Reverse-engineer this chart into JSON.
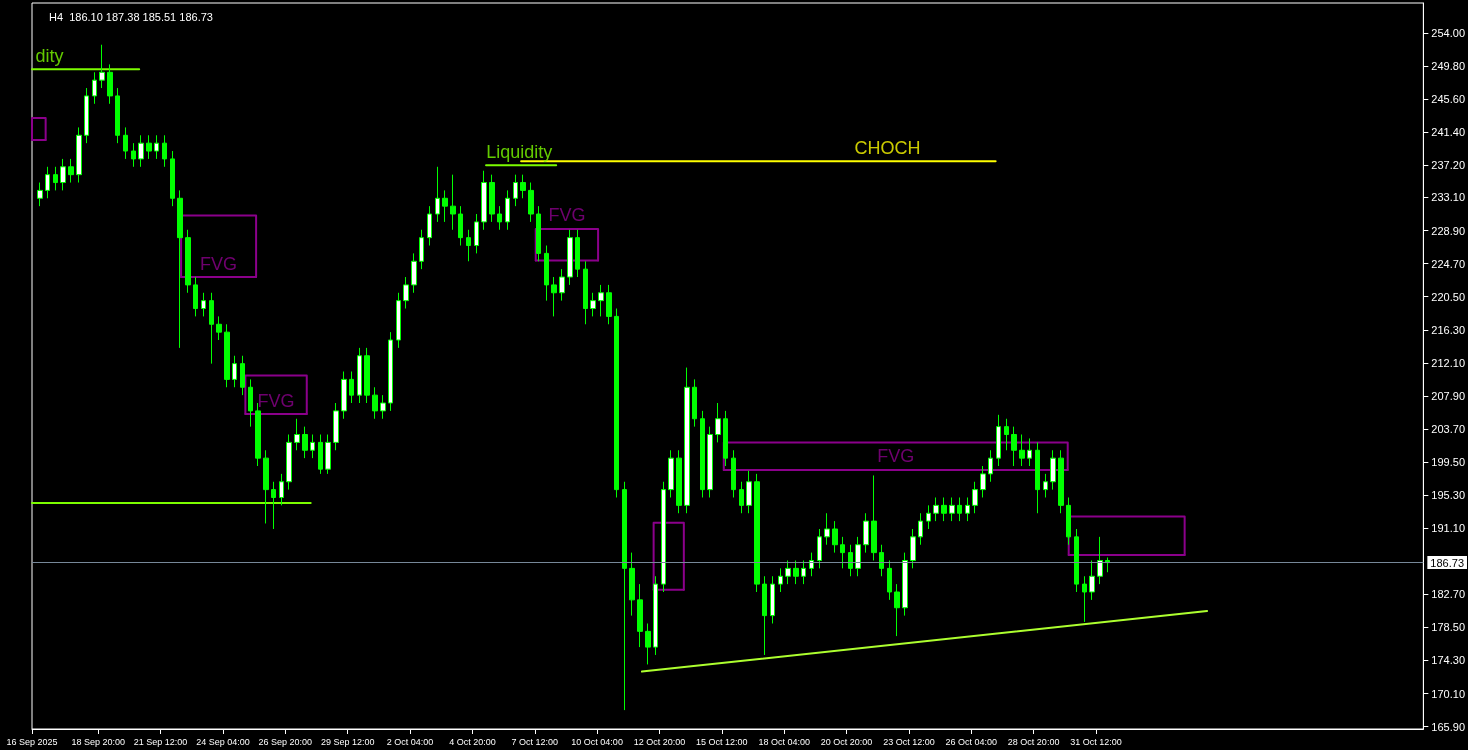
{
  "chart_data": {
    "type": "candlestick",
    "title": "H4  186.10 187.38 185.51 186.73",
    "color": "#00ff00",
    "x": [
      "2025-09-16T08:00",
      "2025-09-16T16:00",
      "2025-09-17T00:00",
      "2025-09-17T08:00",
      "2025-09-17T16:00",
      "2025-09-18T00:00",
      "2025-09-18T08:00",
      "2025-09-18T16:00",
      "2025-09-19T00:00",
      "2025-09-19T08:00",
      "2025-09-19T16:00",
      "2025-09-20T00:00",
      "2025-09-20T08:00",
      "2025-09-20T16:00",
      "2025-09-21T00:00",
      "2025-09-21T08:00",
      "2025-09-21T16:00",
      "2025-09-22T00:00",
      "2025-09-22T08:00",
      "2025-09-22T16:00",
      "2025-09-23T00:00",
      "2025-09-23T08:00",
      "2025-09-23T16:00",
      "2025-09-24T00:00",
      "2025-09-24T08:00",
      "2025-09-24T16:00",
      "2025-09-25T00:00",
      "2025-09-25T08:00",
      "2025-09-25T16:00",
      "2025-09-26T00:00",
      "2025-09-26T08:00",
      "2025-09-26T16:00",
      "2025-09-27T00:00",
      "2025-09-27T08:00",
      "2025-09-27T16:00",
      "2025-09-28T00:00",
      "2025-09-28T08:00",
      "2025-09-28T16:00",
      "2025-09-29T00:00",
      "2025-09-29T08:00",
      "2025-09-29T16:00",
      "2025-09-30T00:00",
      "2025-09-30T08:00",
      "2025-09-30T16:00",
      "2025-10-01T00:00",
      "2025-10-01T08:00",
      "2025-10-01T16:00",
      "2025-10-02T00:00",
      "2025-10-02T08:00",
      "2025-10-02T16:00",
      "2025-10-03T00:00",
      "2025-10-03T08:00",
      "2025-10-03T16:00",
      "2025-10-04T00:00",
      "2025-10-04T08:00",
      "2025-10-04T16:00",
      "2025-10-05T00:00",
      "2025-10-05T08:00",
      "2025-10-05T16:00",
      "2025-10-06T00:00",
      "2025-10-06T08:00",
      "2025-10-06T16:00",
      "2025-10-07T00:00",
      "2025-10-07T08:00",
      "2025-10-07T16:00",
      "2025-10-08T00:00",
      "2025-10-08T08:00",
      "2025-10-08T16:00",
      "2025-10-09T00:00",
      "2025-10-09T08:00",
      "2025-10-09T16:00",
      "2025-10-10T00:00",
      "2025-10-10T08:00",
      "2025-10-10T16:00",
      "2025-10-11T00:00",
      "2025-10-11T08:00",
      "2025-10-11T16:00",
      "2025-10-12T00:00",
      "2025-10-12T08:00",
      "2025-10-12T16:00",
      "2025-10-13T00:00",
      "2025-10-13T08:00",
      "2025-10-13T16:00",
      "2025-10-14T00:00",
      "2025-10-14T08:00",
      "2025-10-14T16:00",
      "2025-10-15T00:00",
      "2025-10-15T08:00",
      "2025-10-15T16:00",
      "2025-10-16T00:00",
      "2025-10-16T08:00",
      "2025-10-16T16:00",
      "2025-10-17T00:00",
      "2025-10-17T08:00",
      "2025-10-17T16:00",
      "2025-10-18T00:00",
      "2025-10-18T08:00",
      "2025-10-18T16:00",
      "2025-10-19T00:00",
      "2025-10-19T08:00",
      "2025-10-19T16:00",
      "2025-10-20T00:00",
      "2025-10-20T08:00",
      "2025-10-20T16:00",
      "2025-10-21T00:00",
      "2025-10-21T08:00",
      "2025-10-21T16:00",
      "2025-10-22T00:00",
      "2025-10-22T08:00",
      "2025-10-22T16:00",
      "2025-10-23T00:00",
      "2025-10-23T08:00",
      "2025-10-23T16:00",
      "2025-10-24T00:00",
      "2025-10-24T08:00",
      "2025-10-24T16:00",
      "2025-10-25T00:00",
      "2025-10-25T08:00",
      "2025-10-25T16:00",
      "2025-10-26T00:00",
      "2025-10-26T08:00",
      "2025-10-26T16:00",
      "2025-10-27T00:00",
      "2025-10-27T08:00",
      "2025-10-27T16:00",
      "2025-10-28T00:00",
      "2025-10-28T08:00",
      "2025-10-28T16:00",
      "2025-10-29T00:00",
      "2025-10-29T08:00",
      "2025-10-29T16:00",
      "2025-10-30T00:00",
      "2025-10-30T08:00",
      "2025-10-30T16:00",
      "2025-10-31T00:00",
      "2025-10-31T08:00",
      "2025-10-31T16:00",
      "2025-11-01T00:00"
    ],
    "ohlc": [
      [
        233,
        235,
        232,
        234
      ],
      [
        234,
        237,
        233,
        236
      ],
      [
        236,
        237,
        234,
        235
      ],
      [
        235,
        238,
        234,
        237
      ],
      [
        237,
        238,
        235,
        236
      ],
      [
        236,
        242,
        235,
        241
      ],
      [
        241,
        247,
        240,
        246
      ],
      [
        246,
        249,
        245,
        248
      ],
      [
        248,
        252.5,
        247,
        249
      ],
      [
        249,
        250,
        245,
        246
      ],
      [
        246,
        247,
        240,
        241
      ],
      [
        241,
        242,
        238,
        239
      ],
      [
        239,
        240,
        237,
        238
      ],
      [
        238,
        241,
        237,
        240
      ],
      [
        240,
        241,
        238,
        239
      ],
      [
        239,
        241,
        238,
        240
      ],
      [
        240,
        241,
        237,
        238
      ],
      [
        238,
        239,
        232,
        233
      ],
      [
        233,
        234,
        214,
        228
      ],
      [
        228,
        229,
        221,
        222
      ],
      [
        222,
        223,
        218,
        219
      ],
      [
        219,
        221,
        218,
        220
      ],
      [
        220,
        221,
        212,
        217
      ],
      [
        217,
        218,
        215,
        216
      ],
      [
        216,
        217,
        209,
        210
      ],
      [
        210,
        213,
        209,
        212
      ],
      [
        212,
        213,
        208,
        209
      ],
      [
        209,
        210,
        204,
        206
      ],
      [
        206,
        207,
        199,
        200
      ],
      [
        200,
        201,
        191.7,
        196
      ],
      [
        196,
        197,
        191,
        195
      ],
      [
        195,
        198,
        194,
        197
      ],
      [
        197,
        203,
        196,
        202
      ],
      [
        202,
        205,
        201,
        203
      ],
      [
        203,
        204,
        200,
        201
      ],
      [
        201,
        203,
        200,
        202
      ],
      [
        202,
        203,
        198,
        198.6
      ],
      [
        198.6,
        203,
        198,
        202
      ],
      [
        202,
        207,
        201,
        206
      ],
      [
        206,
        211,
        205,
        210
      ],
      [
        210,
        211,
        207,
        208
      ],
      [
        208,
        214,
        207,
        213
      ],
      [
        213,
        214,
        207,
        208
      ],
      [
        208,
        209,
        205,
        206
      ],
      [
        206,
        208,
        205,
        207
      ],
      [
        207,
        216,
        206,
        215
      ],
      [
        215,
        221,
        214,
        220
      ],
      [
        220,
        223,
        219,
        222
      ],
      [
        222,
        226,
        221,
        225
      ],
      [
        225,
        229,
        224,
        228
      ],
      [
        228,
        232,
        227,
        231
      ],
      [
        231,
        237,
        230,
        233
      ],
      [
        233,
        234,
        230,
        232
      ],
      [
        232,
        236,
        229,
        231
      ],
      [
        231,
        232,
        227,
        228
      ],
      [
        228,
        229,
        225,
        227
      ],
      [
        227,
        231,
        226,
        230
      ],
      [
        230,
        236.5,
        229,
        235
      ],
      [
        235,
        236,
        230,
        231
      ],
      [
        231,
        232,
        229,
        230
      ],
      [
        230,
        234,
        229,
        233
      ],
      [
        233,
        236,
        232,
        235
      ],
      [
        235,
        236,
        233,
        234
      ],
      [
        234,
        235,
        230,
        231
      ],
      [
        231,
        232,
        225,
        226
      ],
      [
        226,
        227,
        220,
        222
      ],
      [
        222,
        223,
        218,
        221
      ],
      [
        221,
        224,
        220,
        223
      ],
      [
        223,
        229,
        222,
        228
      ],
      [
        228,
        229,
        223,
        224
      ],
      [
        224,
        225,
        217,
        219
      ],
      [
        219,
        221,
        218,
        220
      ],
      [
        220,
        222,
        218,
        221
      ],
      [
        221,
        222,
        217,
        218
      ],
      [
        218,
        219,
        195,
        196
      ],
      [
        196,
        197,
        168,
        186
      ],
      [
        186,
        188,
        180,
        182
      ],
      [
        182,
        184,
        176,
        178
      ],
      [
        178,
        179,
        173.8,
        176
      ],
      [
        176,
        185,
        175,
        184
      ],
      [
        184,
        197,
        183,
        196
      ],
      [
        196,
        201,
        195,
        200
      ],
      [
        200,
        201,
        193,
        194
      ],
      [
        194,
        211.5,
        193,
        209
      ],
      [
        209,
        210,
        204,
        205
      ],
      [
        205,
        206,
        195,
        196
      ],
      [
        196,
        204,
        195,
        203
      ],
      [
        203,
        207,
        202,
        205
      ],
      [
        205,
        206,
        199,
        200
      ],
      [
        200,
        201,
        195,
        196
      ],
      [
        196,
        197,
        193,
        194
      ],
      [
        194,
        198.4,
        193,
        197
      ],
      [
        197,
        198,
        183,
        184
      ],
      [
        184,
        185,
        175,
        180
      ],
      [
        180,
        185,
        179,
        184
      ],
      [
        184,
        186,
        183,
        185
      ],
      [
        185,
        187,
        184,
        186
      ],
      [
        186,
        187,
        184,
        185
      ],
      [
        185,
        187,
        184,
        186
      ],
      [
        186,
        188,
        185,
        187
      ],
      [
        187,
        191,
        186,
        190
      ],
      [
        190,
        193,
        189,
        191
      ],
      [
        191,
        192,
        188,
        189
      ],
      [
        189,
        190,
        186,
        188
      ],
      [
        188,
        189,
        185,
        186
      ],
      [
        186,
        190,
        185,
        189
      ],
      [
        189,
        193,
        188,
        192
      ],
      [
        192,
        197.8,
        187,
        188
      ],
      [
        188,
        189,
        185,
        186
      ],
      [
        186,
        187,
        182,
        183
      ],
      [
        183,
        184,
        177.4,
        181
      ],
      [
        181,
        188,
        180,
        187
      ],
      [
        187,
        191,
        186,
        190
      ],
      [
        190,
        193,
        189,
        192
      ],
      [
        192,
        194,
        191,
        193
      ],
      [
        193,
        195,
        192,
        194
      ],
      [
        194,
        195,
        192,
        193
      ],
      [
        193,
        195,
        192,
        194
      ],
      [
        194,
        195,
        192,
        193
      ],
      [
        193,
        195,
        192,
        194
      ],
      [
        194,
        197,
        193,
        196
      ],
      [
        196,
        199,
        195,
        198
      ],
      [
        198,
        201,
        197,
        200
      ],
      [
        200,
        205.5,
        199,
        204
      ],
      [
        204,
        205,
        201,
        203
      ],
      [
        203,
        204,
        199,
        201
      ],
      [
        201,
        203,
        199,
        200
      ],
      [
        200,
        202.5,
        199,
        201
      ],
      [
        201,
        202,
        193,
        196
      ],
      [
        196,
        198,
        195,
        197
      ],
      [
        197,
        201,
        196,
        200
      ],
      [
        200,
        201,
        193,
        194
      ],
      [
        194,
        195,
        189,
        190
      ],
      [
        190,
        191,
        183,
        184
      ],
      [
        184,
        185,
        179.2,
        183
      ],
      [
        183,
        187,
        182,
        185
      ],
      [
        185,
        190,
        184,
        187
      ],
      [
        187,
        187.38,
        185.51,
        186.73
      ]
    ],
    "series": [
      {
        "type": "line",
        "color": "#7cfc00",
        "x": [
          "2025-09-16T00:00",
          "2025-09-16T18:00",
          "2025-09-20T14:00"
        ],
        "values": [
          249.4,
          249.4,
          249.4
        ]
      },
      {
        "type": "line",
        "color": "#7cfc00",
        "x": [
          "2025-09-16T00:00",
          "2025-09-27T22:00"
        ],
        "values": [
          194.3,
          194.3
        ]
      },
      {
        "type": "line",
        "color": "#7cfc00",
        "x": [
          "2025-10-05T10:00",
          "2025-10-06T20:00",
          "2025-10-08T10:00"
        ],
        "values": [
          237.2,
          237.2,
          237.2
        ]
      },
      {
        "type": "line",
        "color": "#ffff00",
        "x": [
          "2025-10-06T22:00",
          "2025-10-22T14:00",
          "2025-10-27T05:00"
        ],
        "values": [
          237.7,
          237.7,
          237.7
        ]
      },
      {
        "type": "line",
        "color": "#adff2f",
        "x": [
          "2025-10-12T02:00",
          "2025-11-05T06:00"
        ],
        "values": [
          172.9,
          180.6
        ]
      },
      {
        "type": "line",
        "color": "#8b008b",
        "x": [
          "2025-09-16T00:00",
          "2025-09-16T00:00",
          "2025-09-16T14:00",
          "2025-09-16T14:00"
        ],
        "values": [
          240.4,
          243.2,
          243.2,
          240.4
        ]
      },
      {
        "type": "line",
        "color": "#8b008b",
        "x": [
          "2025-09-16T00:00",
          "2025-09-16T14:00"
        ],
        "values": [
          240.4,
          240.4
        ]
      },
      {
        "type": "line",
        "color": "#8b008b",
        "x": [
          "2025-09-22T09:00",
          "2025-09-22T09:00",
          "2025-09-25T14:00",
          "2025-09-25T14:00"
        ],
        "values": [
          223.0,
          230.8,
          230.8,
          223.0
        ]
      },
      {
        "type": "line",
        "color": "#8b008b",
        "x": [
          "2025-09-22T09:00",
          "2025-09-23T23:30",
          "2025-09-25T14:00"
        ],
        "values": [
          223.0,
          223.0,
          223.0
        ]
      },
      {
        "type": "line",
        "color": "#8b008b",
        "x": [
          "2025-09-25T03:00",
          "2025-09-25T03:00",
          "2025-09-27T18:00",
          "2025-09-27T18:00"
        ],
        "values": [
          205.6,
          210.5,
          210.5,
          205.6
        ]
      },
      {
        "type": "line",
        "color": "#8b008b",
        "x": [
          "2025-09-25T03:00",
          "2025-09-26T10:30",
          "2025-09-27T18:00"
        ],
        "values": [
          205.6,
          205.6,
          205.6
        ]
      },
      {
        "type": "line",
        "color": "#8b008b",
        "x": [
          "2025-10-07T13:00",
          "2025-10-07T13:00",
          "2025-10-08T21:00",
          "2025-10-10T05:00",
          "2025-10-10T05:00"
        ],
        "values": [
          225.1,
          229.1,
          229.1,
          229.1,
          225.1
        ]
      },
      {
        "type": "line",
        "color": "#8b008b",
        "x": [
          "2025-10-07T13:00",
          "2025-10-10T05:00"
        ],
        "values": [
          225.1,
          225.1
        ]
      },
      {
        "type": "line",
        "color": "#8b008b",
        "x": [
          "2025-10-12T14:00",
          "2025-10-12T14:00",
          "2025-10-13T21:00",
          "2025-10-13T21:00"
        ],
        "values": [
          183.3,
          191.8,
          191.8,
          183.3
        ]
      },
      {
        "type": "line",
        "color": "#8b008b",
        "x": [
          "2025-10-12T14:00",
          "2025-10-13T21:00"
        ],
        "values": [
          183.3,
          183.3
        ]
      },
      {
        "type": "line",
        "color": "#8b008b",
        "x": [
          "2025-10-15T14:00",
          "2025-10-15T14:00",
          "2025-10-30T07:00",
          "2025-10-30T07:00"
        ],
        "values": [
          198.5,
          202.0,
          202.0,
          198.5
        ]
      },
      {
        "type": "line",
        "color": "#8b008b",
        "x": [
          "2025-10-15T14:00",
          "2025-10-22T22:30",
          "2025-10-30T07:00"
        ],
        "values": [
          198.5,
          198.5,
          198.5
        ]
      },
      {
        "type": "line",
        "color": "#8b008b",
        "x": [
          "2025-10-30T08:00",
          "2025-10-30T08:00",
          "2025-11-04T07:00",
          "2025-11-04T07:00"
        ],
        "values": [
          187.7,
          192.6,
          192.6,
          187.7
        ]
      },
      {
        "type": "line",
        "color": "#8b008b",
        "x": [
          "2025-10-30T08:00",
          "2025-11-04T07:00"
        ],
        "values": [
          187.7,
          187.7
        ]
      }
    ],
    "annotations": [
      {
        "text": "dity",
        "x": "2025-09-16T18:00",
        "y": 249.4
      },
      {
        "text": "FVG",
        "x": "2025-09-23T23:30",
        "y": 223.0
      },
      {
        "text": "FVG",
        "x": "2025-09-26T10:30",
        "y": 205.6
      },
      {
        "text": "Liquidity",
        "x": "2025-10-06T20:00",
        "y": 237.2
      },
      {
        "text": "FVG",
        "x": "2025-10-08T21:00",
        "y": 229.1
      },
      {
        "text": "CHOCH",
        "x": "2025-10-22T14:00",
        "y": 237.7
      },
      {
        "text": "FVG",
        "x": "2025-10-22T22:30",
        "y": 198.5
      }
    ],
    "ref_lines": [
      {
        "axis": "y",
        "value": 186.73,
        "label": "186.73",
        "color": "#778899"
      }
    ],
    "xlim": [
      "2025-09-16T00:00",
      "2025-11-14T12:00"
    ],
    "xticks": [
      {
        "value": "2025-09-16",
        "label": "16 Sep 2025"
      },
      {
        "value": "2025-09-18T20:00",
        "label": "18 Sep 20:00"
      },
      {
        "value": "2025-09-21T12:00",
        "label": "21 Sep 12:00"
      },
      {
        "value": "2025-09-24T04:00",
        "label": "24 Sep 04:00"
      },
      {
        "value": "2025-09-26T20:00",
        "label": "26 Sep 20:00"
      },
      {
        "value": "2025-09-29T12:00",
        "label": "29 Sep 12:00"
      },
      {
        "value": "2025-10-02T04:00",
        "label": "2 Oct 04:00"
      },
      {
        "value": "2025-10-04T20:00",
        "label": "4 Oct 20:00"
      },
      {
        "value": "2025-10-07T12:00",
        "label": "7 Oct 12:00"
      },
      {
        "value": "2025-10-10T04:00",
        "label": "10 Oct 04:00"
      },
      {
        "value": "2025-10-12T20:00",
        "label": "12 Oct 20:00"
      },
      {
        "value": "2025-10-15T12:00",
        "label": "15 Oct 12:00"
      },
      {
        "value": "2025-10-18T04:00",
        "label": "18 Oct 04:00"
      },
      {
        "value": "2025-10-20T20:00",
        "label": "20 Oct 20:00"
      },
      {
        "value": "2025-10-23T12:00",
        "label": "23 Oct 12:00"
      },
      {
        "value": "2025-10-26T04:00",
        "label": "26 Oct 04:00"
      },
      {
        "value": "2025-10-28T20:00",
        "label": "28 Oct 20:00"
      },
      {
        "value": "2025-10-31T12:00",
        "label": "31 Oct 12:00"
      }
    ],
    "ylim": [
      165.6,
      257.8
    ],
    "yticks": [
      {
        "value": 254,
        "label": "254.00"
      },
      {
        "value": 249.8,
        "label": "249.80"
      },
      {
        "value": 245.6,
        "label": "245.60"
      },
      {
        "value": 241.4,
        "label": "241.40"
      },
      {
        "value": 237.2,
        "label": "237.20"
      },
      {
        "value": 233.1,
        "label": "233.10"
      },
      {
        "value": 228.9,
        "label": "228.90"
      },
      {
        "value": 224.7,
        "label": "224.70"
      },
      {
        "value": 220.5,
        "label": "220.50"
      },
      {
        "value": 216.3,
        "label": "216.30"
      },
      {
        "value": 212.1,
        "label": "212.10"
      },
      {
        "value": 207.9,
        "label": "207.90"
      },
      {
        "value": 203.7,
        "label": "203.70"
      },
      {
        "value": 199.5,
        "label": "199.50"
      },
      {
        "value": 195.3,
        "label": "195.30"
      },
      {
        "value": 191.1,
        "label": "191.10"
      },
      {
        "value": 182.7,
        "label": "182.70"
      },
      {
        "value": 178.5,
        "label": "178.50"
      },
      {
        "value": 174.3,
        "label": "174.30"
      },
      {
        "value": 170.1,
        "label": "170.10"
      },
      {
        "value": 165.9,
        "label": "165.90"
      }
    ]
  }
}
